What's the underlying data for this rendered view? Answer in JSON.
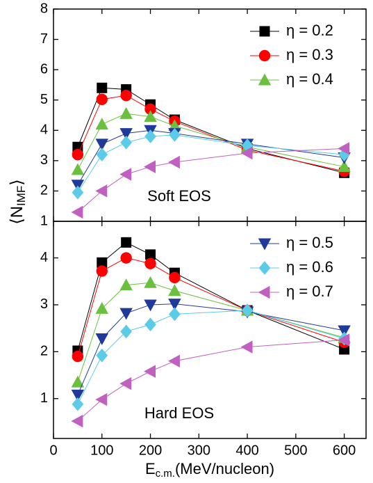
{
  "chart_data": [
    {
      "type": "line",
      "annotation": "Soft EOS",
      "ylabel": [
        "⟨N",
        "IMF",
        "⟩"
      ],
      "x": [
        50,
        100,
        150,
        200,
        250,
        400,
        600
      ],
      "ylim": [
        1,
        8
      ],
      "yticks": [
        1,
        2,
        3,
        4,
        5,
        6,
        7,
        8
      ],
      "series": [
        {
          "name": "η = 0.2",
          "color": "#000000",
          "marker": "square",
          "values": [
            3.45,
            5.4,
            5.35,
            4.85,
            4.35,
            3.4,
            2.6
          ]
        },
        {
          "name": "η = 0.3",
          "color": "#ff0000",
          "marker": "circle",
          "values": [
            3.2,
            5.02,
            5.15,
            4.7,
            4.3,
            3.35,
            2.65
          ]
        },
        {
          "name": "η = 0.4",
          "color": "#6cc040",
          "marker": "triangle-up",
          "values": [
            2.7,
            4.2,
            4.55,
            4.45,
            4.15,
            3.45,
            2.8
          ]
        },
        {
          "color": "#1f3a9a",
          "marker": "triangle-down",
          "values": [
            2.2,
            3.55,
            3.9,
            4.0,
            3.9,
            3.55,
            3.1
          ]
        },
        {
          "color": "#5ccbe8",
          "marker": "diamond",
          "values": [
            1.95,
            3.2,
            3.6,
            3.8,
            3.85,
            3.5,
            3.2
          ]
        },
        {
          "color": "#c060c0",
          "marker": "triangle-left",
          "values": [
            1.3,
            2.0,
            2.55,
            2.8,
            2.95,
            3.25,
            3.4
          ]
        }
      ]
    },
    {
      "type": "line",
      "annotation": "Hard EOS",
      "xlabel": [
        "E",
        "c.m.",
        "(MeV/nucleon)"
      ],
      "x": [
        50,
        100,
        150,
        200,
        250,
        400,
        600
      ],
      "xlim": [
        0,
        645
      ],
      "xticks": [
        0,
        100,
        200,
        300,
        400,
        500,
        600
      ],
      "ylim": [
        0.15,
        4.78
      ],
      "yticks": [
        1,
        2,
        3,
        4
      ],
      "series": [
        {
          "color": "#000000",
          "marker": "square",
          "values": [
            2.02,
            3.9,
            4.33,
            4.07,
            3.68,
            2.88,
            2.05
          ]
        },
        {
          "color": "#ff0000",
          "marker": "circle",
          "values": [
            1.9,
            3.72,
            4.0,
            3.88,
            3.58,
            2.88,
            2.2
          ]
        },
        {
          "color": "#6cc040",
          "marker": "triangle-up",
          "values": [
            1.35,
            2.92,
            3.42,
            3.47,
            3.3,
            2.88,
            2.3
          ]
        },
        {
          "name": "η = 0.5",
          "color": "#1f3a9a",
          "marker": "triangle-down",
          "values": [
            1.08,
            2.28,
            2.82,
            3.0,
            3.02,
            2.85,
            2.45
          ]
        },
        {
          "name": "η = 0.6",
          "color": "#5ccbe8",
          "marker": "diamond",
          "values": [
            0.88,
            1.92,
            2.43,
            2.58,
            2.8,
            2.88,
            2.28
          ]
        },
        {
          "name": "η = 0.7",
          "color": "#c060c0",
          "marker": "triangle-left",
          "values": [
            0.52,
            0.98,
            1.32,
            1.58,
            1.8,
            2.1,
            2.25
          ]
        }
      ]
    }
  ]
}
